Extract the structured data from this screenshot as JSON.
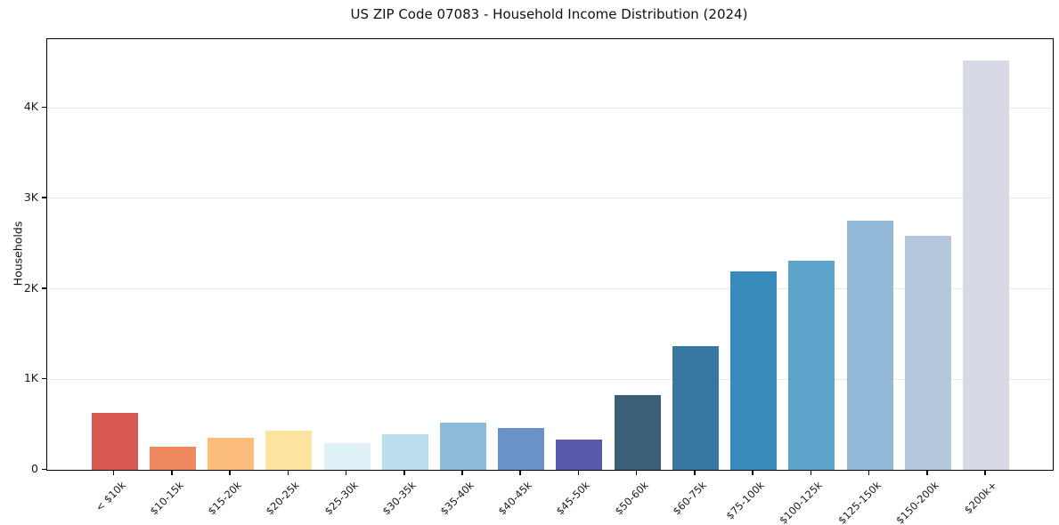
{
  "chart_data": {
    "type": "bar",
    "title": "US ZIP Code 07083 - Household Income Distribution (2024)",
    "xlabel": "",
    "ylabel": "Households",
    "categories": [
      "< $10k",
      "$10-15k",
      "$15-20k",
      "$20-25k",
      "$25-30k",
      "$30-35k",
      "$35-40k",
      "$40-45k",
      "$45-50k",
      "$50-60k",
      "$60-75k",
      "$75-100k",
      "$100-125k",
      "$125-150k",
      "$150-200k",
      "$200k+"
    ],
    "values": [
      630,
      260,
      350,
      435,
      300,
      390,
      525,
      460,
      335,
      830,
      1370,
      2190,
      2310,
      2750,
      2590,
      4520
    ],
    "bar_colors": [
      "#d65850",
      "#f0885f",
      "#fdbd7c",
      "#fce3a0",
      "#e0f2f8",
      "#badeed",
      "#8fbbdb",
      "#6b92c8",
      "#5a58a9",
      "#3a5f76",
      "#38779f",
      "#388abd",
      "#5ca4ca",
      "#92bad8",
      "#b5c7dd",
      "#d8d9e6"
    ],
    "ytick_labels": [
      "0",
      "1K",
      "2K",
      "3K",
      "4K"
    ],
    "ytick_values": [
      0,
      1000,
      2000,
      3000,
      4000
    ],
    "ylim": [
      0,
      4760
    ],
    "grid": "horizontal-only",
    "gridline_color": "#e8e8e8",
    "plot_border_color": "#000000",
    "background_color": "#ffffff",
    "legend": "none",
    "xtick_rotation_degrees": 45
  }
}
